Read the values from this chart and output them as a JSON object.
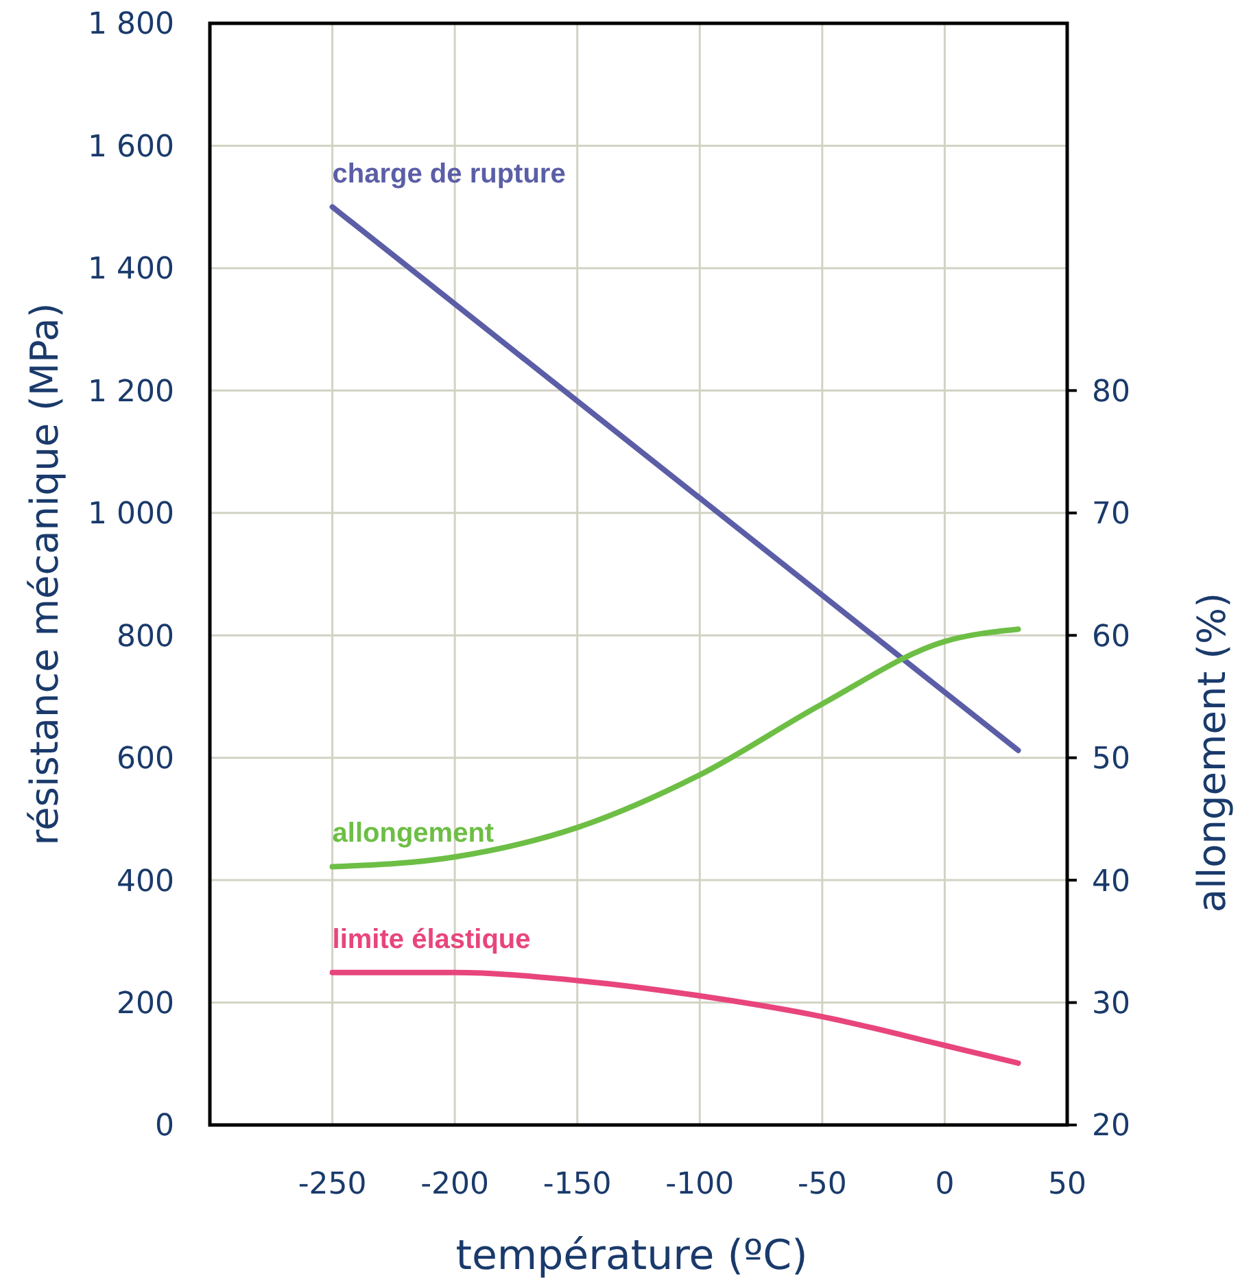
{
  "chart_data": {
    "type": "line",
    "xlabel": "température (ºC)",
    "ylabel": "résistance mécanique (MPa)",
    "y2label": "allongement (%)",
    "xlim": [
      -300,
      50
    ],
    "xticks": [
      -250,
      -200,
      -150,
      -100,
      -50,
      0,
      50
    ],
    "ylim": [
      0,
      1800
    ],
    "yticks": [
      0,
      200,
      400,
      600,
      800,
      {
        "value": 1000,
        "label": "1 000"
      },
      {
        "value": 1200,
        "label": "1 200"
      },
      {
        "value": 1400,
        "label": "1 400"
      },
      {
        "value": 1600,
        "label": "1 600"
      },
      {
        "value": 1800,
        "label": "1 800"
      }
    ],
    "y2lim": [
      20,
      110
    ],
    "y2ticks": [
      20,
      30,
      40,
      50,
      60,
      70,
      80
    ],
    "grid": true,
    "marker": "none",
    "line_style": "solid",
    "series": [
      {
        "name": "charge de rupture",
        "color": "#5b5ea6",
        "x": [
          -250,
          30
        ],
        "values": [
          1500,
          612
        ]
      },
      {
        "name": "allongement",
        "color": "#6dbe45",
        "axis": "y2",
        "x": [
          -250,
          -200,
          -150,
          -100,
          -50,
          0,
          30
        ],
        "values": [
          41.1,
          41.9,
          44.3,
          48.6,
          54.4,
          59.5,
          60.5
        ]
      },
      {
        "name": "limite élastique",
        "color": "#e8457c",
        "x": [
          -250,
          -200,
          -150,
          -100,
          -50,
          0,
          30
        ],
        "values": [
          249,
          249,
          236,
          211,
          177,
          130,
          101
        ]
      }
    ]
  }
}
